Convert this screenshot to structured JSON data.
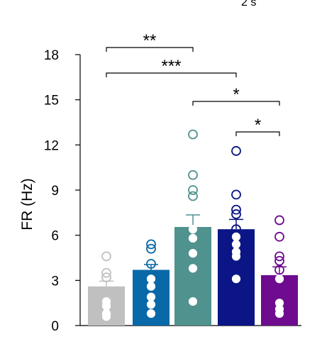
{
  "corner_text": "2 s",
  "chart_data": {
    "type": "bar",
    "ylabel": "FR (Hz)",
    "xlabel": "",
    "ylim": [
      0,
      18
    ],
    "yticks": [
      "0",
      "3",
      "6",
      "9",
      "12",
      "15",
      "18"
    ],
    "grid": false,
    "series": [
      {
        "color": "#c0c0c0",
        "value": 2.6,
        "error": 0.35,
        "points": [
          {
            "v": 4.6,
            "filled": false
          },
          {
            "v": 3.5,
            "filled": false
          },
          {
            "v": 3.2,
            "filled": false
          },
          {
            "v": 1.6,
            "filled": true
          },
          {
            "v": 1.3,
            "filled": true
          },
          {
            "v": 1.3,
            "filled": true
          },
          {
            "v": 0.8,
            "filled": true
          },
          {
            "v": 0.6,
            "filled": true
          }
        ]
      },
      {
        "color": "#0868a8",
        "value": 3.7,
        "error": 0.35,
        "points": [
          {
            "v": 5.4,
            "filled": false
          },
          {
            "v": 5.1,
            "filled": false
          },
          {
            "v": 4.1,
            "filled": false
          },
          {
            "v": 3.1,
            "filled": true
          },
          {
            "v": 2.6,
            "filled": true
          },
          {
            "v": 1.9,
            "filled": true
          },
          {
            "v": 1.4,
            "filled": true
          },
          {
            "v": 0.8,
            "filled": true
          }
        ]
      },
      {
        "color": "#4f928e",
        "value": 6.55,
        "error": 0.8,
        "points": [
          {
            "v": 12.7,
            "filled": false
          },
          {
            "v": 10.0,
            "filled": false
          },
          {
            "v": 9.0,
            "filled": false
          },
          {
            "v": 8.6,
            "filled": false
          },
          {
            "v": 6.4,
            "filled": true
          },
          {
            "v": 5.8,
            "filled": true
          },
          {
            "v": 4.8,
            "filled": true
          },
          {
            "v": 3.8,
            "filled": true
          },
          {
            "v": 1.6,
            "filled": true
          }
        ]
      },
      {
        "color": "#0b1585",
        "value": 6.4,
        "error": 0.65,
        "points": [
          {
            "v": 11.6,
            "filled": false
          },
          {
            "v": 8.7,
            "filled": false
          },
          {
            "v": 7.7,
            "filled": false
          },
          {
            "v": 7.4,
            "filled": false
          },
          {
            "v": 6.4,
            "filled": false
          },
          {
            "v": 5.9,
            "filled": true
          },
          {
            "v": 5.4,
            "filled": true
          },
          {
            "v": 4.9,
            "filled": true
          },
          {
            "v": 4.6,
            "filled": true
          },
          {
            "v": 3.1,
            "filled": true
          }
        ]
      },
      {
        "color": "#6e0b8e",
        "value": 3.35,
        "error": 0.55,
        "points": [
          {
            "v": 7.0,
            "filled": false
          },
          {
            "v": 5.9,
            "filled": false
          },
          {
            "v": 4.6,
            "filled": false
          },
          {
            "v": 4.3,
            "filled": false
          },
          {
            "v": 3.7,
            "filled": false
          },
          {
            "v": 3.1,
            "filled": true
          },
          {
            "v": 1.5,
            "filled": true
          },
          {
            "v": 1.1,
            "filled": true
          },
          {
            "v": 0.8,
            "filled": true
          }
        ]
      }
    ],
    "comparisons": [
      {
        "from": 0,
        "to": 2,
        "label": "**"
      },
      {
        "from": 0,
        "to": 3,
        "label": "***"
      },
      {
        "from": 2,
        "to": 4,
        "label": "*"
      },
      {
        "from": 3,
        "to": 4,
        "label": "*"
      }
    ]
  }
}
